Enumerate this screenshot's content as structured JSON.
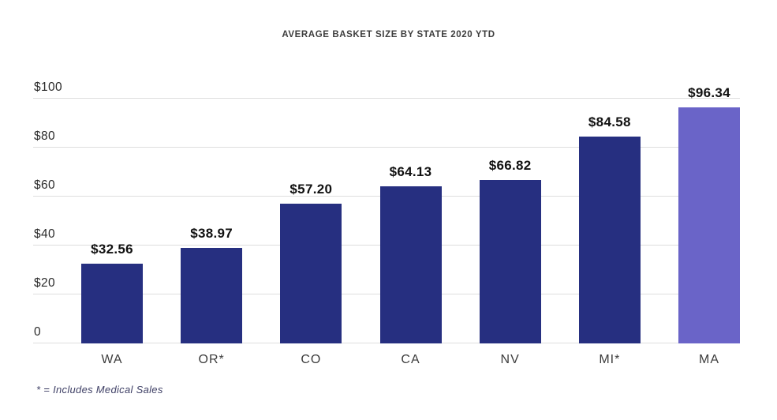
{
  "chart_data": {
    "type": "bar",
    "title": "AVERAGE BASKET SIZE BY STATE 2020 YTD",
    "categories": [
      "WA",
      "OR*",
      "CO",
      "CA",
      "NV",
      "MI*",
      "MA"
    ],
    "values": [
      32.56,
      38.97,
      57.2,
      64.13,
      66.82,
      84.58,
      96.34
    ],
    "value_labels": [
      "$32.56",
      "$38.97",
      "$57.20",
      "$64.13",
      "$66.82",
      "$84.58",
      "$96.34"
    ],
    "y_ticks": [
      {
        "value": 100,
        "label": "$100"
      },
      {
        "value": 80,
        "label": "$80"
      },
      {
        "value": 60,
        "label": "$60"
      },
      {
        "value": 40,
        "label": "$40"
      },
      {
        "value": 20,
        "label": "$20"
      },
      {
        "value": 0,
        "label": "0"
      }
    ],
    "ylim": [
      0,
      100
    ],
    "grid": true,
    "legend": false,
    "highlight_index": 6,
    "footnote": "* = Includes Medical Sales"
  },
  "colors": {
    "bar_default": "#262F80",
    "bar_highlight": "#6A64C8",
    "gridline": "#DEDEDE",
    "title_text": "#3D3D3D",
    "axis_text": "#3C3C3C",
    "value_text": "#111111",
    "footnote_text": "#3F4066"
  }
}
